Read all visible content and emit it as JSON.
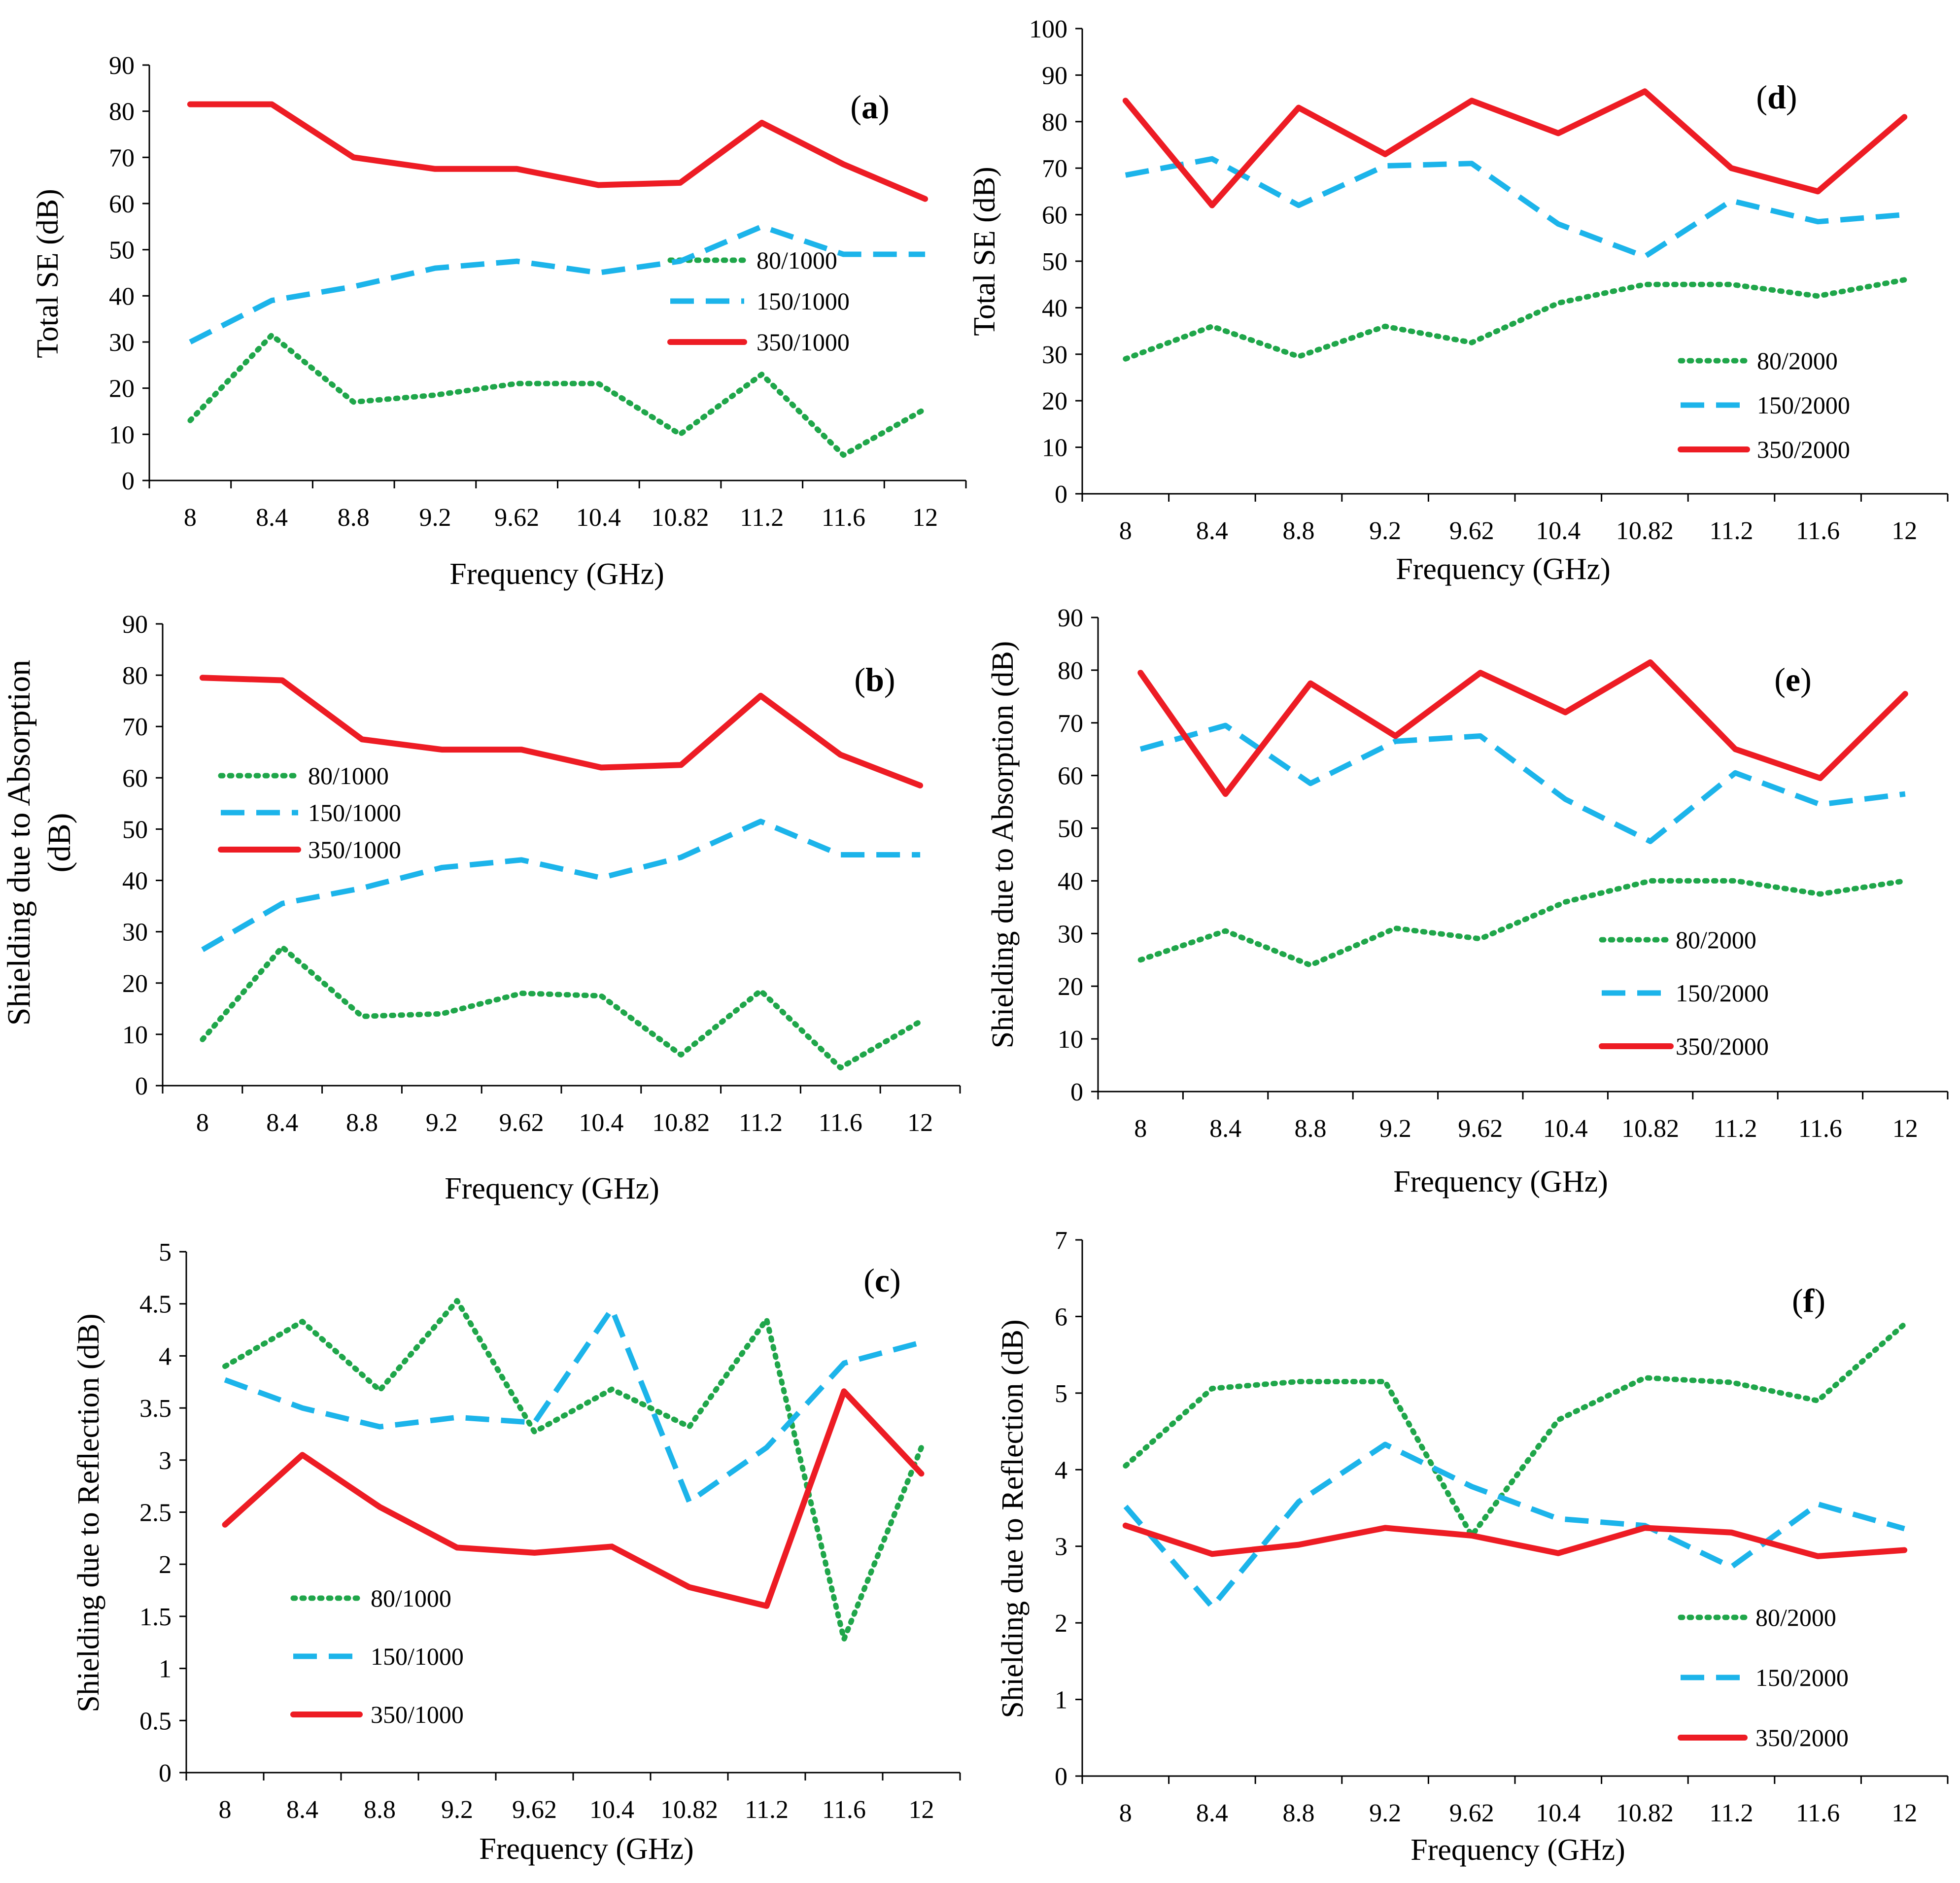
{
  "colors": {
    "s80": "#1fa64a",
    "s150": "#1cb4ea",
    "s350": "#ed1c24"
  },
  "chart_data": [
    {
      "id": "a",
      "type": "line",
      "panel_label": "a",
      "xlabel": "Frequency  (GHz)",
      "ylabel": "Total SE (dB)",
      "ylim": [
        0,
        90
      ],
      "ytick_step": 10,
      "categories": [
        "8",
        "8.4",
        "8.8",
        "9.2",
        "9.62",
        "10.4",
        "10.82",
        "11.2",
        "11.6",
        "12"
      ],
      "legend_position": "right-middle",
      "series": [
        {
          "name": "80/1000",
          "style": "dotted",
          "color_key": "s80",
          "values": [
            13,
            31.5,
            17,
            18.5,
            21,
            21,
            10,
            23,
            5.5,
            15.5
          ]
        },
        {
          "name": "150/1000",
          "style": "dashed",
          "color_key": "s150",
          "values": [
            30,
            39,
            42,
            46,
            47.5,
            45,
            47.5,
            55,
            49,
            49
          ]
        },
        {
          "name": "350/1000",
          "style": "solid",
          "color_key": "s350",
          "values": [
            81.5,
            81.5,
            70,
            67.5,
            67.5,
            64,
            64.5,
            77.5,
            68.5,
            61
          ]
        }
      ]
    },
    {
      "id": "b",
      "type": "line",
      "panel_label": "b",
      "xlabel": "Frequency  (GHz)",
      "ylabel": "Shielding due to Absorption (dB)",
      "ylim": [
        0,
        90
      ],
      "ytick_step": 10,
      "categories": [
        "8",
        "8.4",
        "8.8",
        "9.2",
        "9.62",
        "10.4",
        "10.82",
        "11.2",
        "11.6",
        "12"
      ],
      "legend_position": "left-middle",
      "series": [
        {
          "name": "80/1000",
          "style": "dotted",
          "color_key": "s80",
          "values": [
            9,
            27,
            13.5,
            14,
            18,
            17.5,
            6,
            18.5,
            3.5,
            12.5
          ]
        },
        {
          "name": "150/1000",
          "style": "dashed",
          "color_key": "s150",
          "values": [
            26.5,
            35.5,
            38.5,
            42.5,
            44,
            40.5,
            44.5,
            51.5,
            45,
            45
          ]
        },
        {
          "name": "350/1000",
          "style": "solid",
          "color_key": "s350",
          "values": [
            79.5,
            79,
            67.5,
            65.5,
            65.5,
            62,
            62.5,
            76,
            64.5,
            58.5
          ]
        }
      ]
    },
    {
      "id": "c",
      "type": "line",
      "panel_label": "c",
      "xlabel": "Frequency  (GHz)",
      "ylabel": "Shielding due to Reflection (dB)",
      "ylim": [
        0,
        5
      ],
      "ytick_step": 0.5,
      "categories": [
        "8",
        "8.4",
        "8.8",
        "9.2",
        "9.62",
        "10.4",
        "10.82",
        "11.2",
        "11.6",
        "12"
      ],
      "legend_position": "left-bottom",
      "series": [
        {
          "name": "80/1000",
          "style": "dotted",
          "color_key": "s80",
          "values": [
            3.9,
            4.33,
            3.67,
            4.53,
            3.27,
            3.68,
            3.32,
            4.35,
            1.28,
            3.12
          ]
        },
        {
          "name": "150/1000",
          "style": "dashed",
          "color_key": "s150",
          "values": [
            3.77,
            3.5,
            3.32,
            3.41,
            3.36,
            4.45,
            2.6,
            3.12,
            3.93,
            4.13
          ]
        },
        {
          "name": "350/1000",
          "style": "solid",
          "color_key": "s350",
          "values": [
            2.38,
            3.05,
            2.55,
            2.16,
            2.11,
            2.17,
            1.78,
            1.6,
            3.66,
            2.87
          ]
        }
      ]
    },
    {
      "id": "d",
      "type": "line",
      "panel_label": "d",
      "xlabel": "Frequency  (GHz)",
      "ylabel": "Total SE (dB)",
      "ylim": [
        0,
        100
      ],
      "ytick_step": 10,
      "categories": [
        "8",
        "8.4",
        "8.8",
        "9.2",
        "9.62",
        "10.4",
        "10.82",
        "11.2",
        "11.6",
        "12"
      ],
      "legend_position": "right-bottom",
      "series": [
        {
          "name": "80/2000",
          "style": "dotted",
          "color_key": "s80",
          "values": [
            29,
            36,
            29.5,
            36,
            32.5,
            41,
            45,
            45,
            42.5,
            46
          ]
        },
        {
          "name": "150/2000",
          "style": "dashed",
          "color_key": "s150",
          "values": [
            68.5,
            72,
            62,
            70.5,
            71,
            58,
            51,
            63,
            58.5,
            60
          ]
        },
        {
          "name": "350/2000",
          "style": "solid",
          "color_key": "s350",
          "values": [
            84.5,
            62,
            83,
            73,
            84.5,
            77.5,
            86.5,
            70,
            65,
            81
          ]
        }
      ]
    },
    {
      "id": "e",
      "type": "line",
      "panel_label": "e",
      "xlabel": "Frequency  (GHz)",
      "ylabel": "Shielding due to Absorption (dB)",
      "ylim": [
        0,
        90
      ],
      "ytick_step": 10,
      "categories": [
        "8",
        "8.4",
        "8.8",
        "9.2",
        "9.62",
        "10.4",
        "10.82",
        "11.2",
        "11.6",
        "12"
      ],
      "legend_position": "right-bottom",
      "series": [
        {
          "name": "80/2000",
          "style": "dotted",
          "color_key": "s80",
          "values": [
            25,
            30.5,
            24,
            31,
            29,
            36,
            40,
            40,
            37.5,
            40
          ]
        },
        {
          "name": "150/2000",
          "style": "dashed",
          "color_key": "s150",
          "values": [
            65,
            69.5,
            58.5,
            66.5,
            67.5,
            55.5,
            47.5,
            60.5,
            54.5,
            56.5
          ]
        },
        {
          "name": "350/2000",
          "style": "solid",
          "color_key": "s350",
          "values": [
            79.5,
            56.5,
            77.5,
            67.5,
            79.5,
            72,
            81.5,
            65,
            59.5,
            75.5
          ]
        }
      ]
    },
    {
      "id": "f",
      "type": "line",
      "panel_label": "f",
      "xlabel": "Frequency  (GHz)",
      "ylabel": "Shielding due to Reflection (dB)",
      "ylim": [
        0,
        7
      ],
      "ytick_step": 1,
      "categories": [
        "8",
        "8.4",
        "8.8",
        "9.2",
        "9.62",
        "10.4",
        "10.82",
        "11.2",
        "11.6",
        "12"
      ],
      "legend_position": "right-bottom",
      "series": [
        {
          "name": "80/2000",
          "style": "dotted",
          "color_key": "s80",
          "values": [
            4.05,
            5.06,
            5.15,
            5.15,
            3.14,
            4.65,
            5.2,
            5.14,
            4.9,
            5.9
          ]
        },
        {
          "name": "150/2000",
          "style": "dashed",
          "color_key": "s150",
          "values": [
            3.52,
            2.21,
            3.58,
            4.33,
            3.78,
            3.36,
            3.27,
            2.73,
            3.55,
            3.23
          ]
        },
        {
          "name": "350/2000",
          "style": "solid",
          "color_key": "s350",
          "values": [
            3.27,
            2.9,
            3.02,
            3.24,
            3.14,
            2.91,
            3.24,
            3.18,
            2.87,
            2.95
          ]
        }
      ]
    }
  ]
}
